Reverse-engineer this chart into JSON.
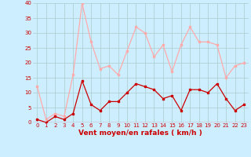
{
  "x": [
    0,
    1,
    2,
    3,
    4,
    5,
    6,
    7,
    8,
    9,
    10,
    11,
    12,
    13,
    14,
    15,
    16,
    17,
    18,
    19,
    20,
    21,
    22,
    23
  ],
  "wind_avg": [
    1,
    0,
    2,
    1,
    3,
    14,
    6,
    4,
    7,
    7,
    10,
    13,
    12,
    11,
    8,
    9,
    4,
    11,
    11,
    10,
    13,
    8,
    4,
    6
  ],
  "wind_gust": [
    12,
    1,
    3,
    2,
    16,
    40,
    27,
    18,
    19,
    16,
    24,
    32,
    30,
    22,
    26,
    17,
    26,
    32,
    27,
    27,
    26,
    15,
    19,
    20
  ],
  "avg_color": "#cc0000",
  "gust_color": "#ffaaaa",
  "bg_color": "#cceeff",
  "grid_color": "#aacccc",
  "xlabel": "Vent moyen/en rafales ( km/h )",
  "ylim": [
    0,
    40
  ],
  "xlim": [
    -0.5,
    23.5
  ],
  "yticks": [
    0,
    5,
    10,
    15,
    20,
    25,
    30,
    35,
    40
  ],
  "xticks": [
    0,
    1,
    2,
    3,
    4,
    5,
    6,
    7,
    8,
    9,
    10,
    11,
    12,
    13,
    14,
    15,
    16,
    17,
    18,
    19,
    20,
    21,
    22,
    23
  ],
  "marker": "s",
  "markersize": 2,
  "linewidth": 0.9,
  "xlabel_color": "#cc0000",
  "tick_color": "#cc0000",
  "tick_fontsize": 5,
  "xlabel_fontsize": 6.5
}
